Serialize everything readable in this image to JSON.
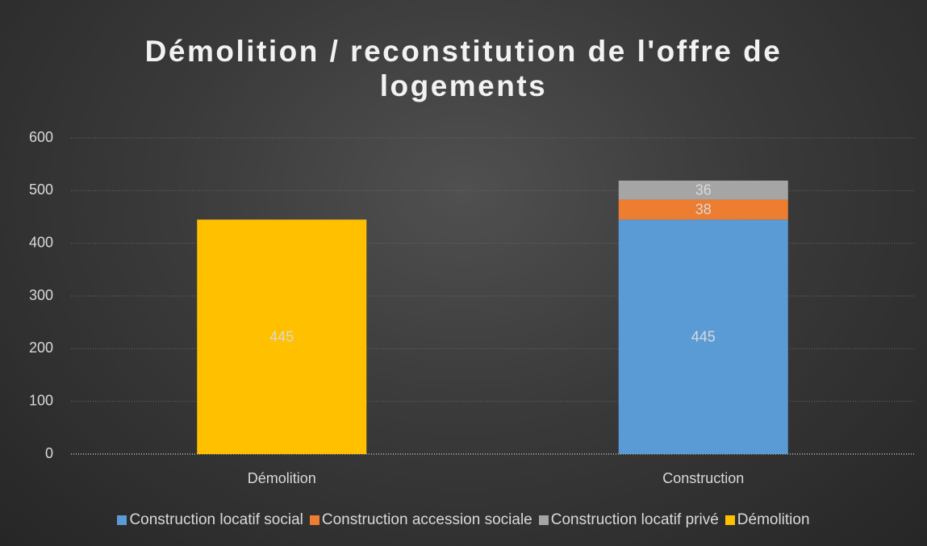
{
  "chart_data": {
    "type": "stacked-bar",
    "title": "Démolition / reconstitution de l'offre de logements",
    "categories": [
      "Démolition",
      "Construction"
    ],
    "series": [
      {
        "name": "Construction locatif social",
        "color": "#5b9bd5",
        "values": [
          null,
          445
        ]
      },
      {
        "name": "Construction accession sociale",
        "color": "#ed7d31",
        "values": [
          null,
          38
        ]
      },
      {
        "name": "Construction locatif privé",
        "color": "#a5a5a5",
        "values": [
          null,
          36
        ]
      },
      {
        "name": "Démolition",
        "color": "#ffc000",
        "values": [
          445,
          null
        ]
      }
    ],
    "ylim": [
      0,
      600
    ],
    "yticks": [
      0,
      100,
      200,
      300,
      400,
      500,
      600
    ],
    "grid": true,
    "legend": "bottom"
  }
}
